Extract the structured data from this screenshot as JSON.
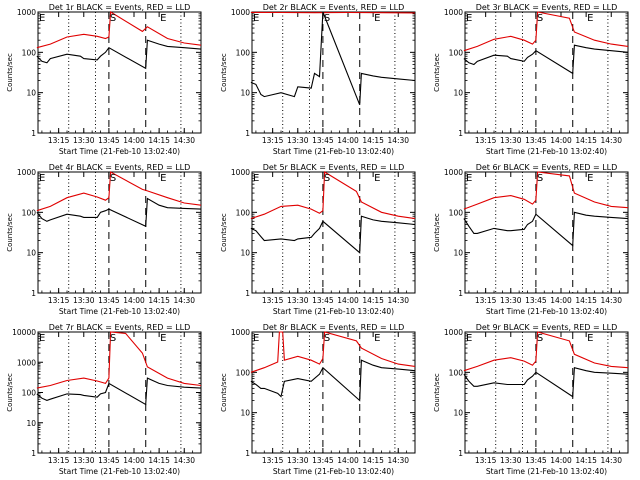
{
  "figure": {
    "background": "#ffffff",
    "colors": {
      "events": "#000000",
      "lld": "#e00000",
      "axis": "#000000"
    }
  },
  "chart_data": [
    {
      "type": "line",
      "scale": "log",
      "title": "Det 1r BLACK = Events, RED = LLD",
      "ylabel": "Counts/sec",
      "xlabel": "Start Time (21-Feb-10 13:02:40)",
      "xlim": [
        "13:02:40",
        "14:40:00"
      ],
      "ylim": [
        1,
        1000
      ],
      "ytick_labels": [
        "1",
        "10",
        "100",
        "1000"
      ],
      "xtick_labels": [
        "13:15",
        "13:30",
        "13:45",
        "14:00",
        "14:15",
        "14:30"
      ],
      "markers": {
        "E_left": "13:02:40",
        "S": "13:45:00",
        "E_right": "14:15:00"
      },
      "dotted": [
        "13:21:00",
        "13:37:00",
        "14:28:00"
      ],
      "dashed": [
        "13:45:00",
        "14:07:00"
      ],
      "series": [
        {
          "name": "LLD",
          "x": [
            "13:02",
            "13:10",
            "13:20",
            "13:30",
            "13:38",
            "13:43",
            "13:45",
            "13:46",
            "14:05",
            "14:08",
            "14:20",
            "14:30",
            "14:40"
          ],
          "y": [
            130,
            160,
            240,
            280,
            250,
            220,
            240,
            1000,
            330,
            430,
            220,
            170,
            150
          ]
        },
        {
          "name": "Events",
          "x": [
            "13:02",
            "13:05",
            "13:08",
            "13:10",
            "13:20",
            "13:28",
            "13:30",
            "13:38",
            "13:40",
            "13:43",
            "13:45",
            "14:07",
            "14:08",
            "14:15",
            "14:20",
            "14:30",
            "14:40"
          ],
          "y": [
            80,
            60,
            55,
            70,
            90,
            80,
            70,
            65,
            80,
            100,
            130,
            40,
            200,
            160,
            140,
            130,
            120
          ]
        }
      ]
    },
    {
      "type": "line",
      "scale": "log",
      "title": "Det 2r BLACK = Events, RED = LLD",
      "ylabel": "Counts/sec",
      "xlabel": "Start Time (21-Feb-10 13:02:40)",
      "xlim": [
        "13:02:40",
        "14:40:00"
      ],
      "ylim": [
        1,
        1000
      ],
      "ytick_labels": [
        "1",
        "10",
        "100",
        "1000"
      ],
      "xtick_labels": [
        "13:15",
        "13:30",
        "13:45",
        "14:00",
        "14:15",
        "14:30"
      ],
      "markers": {
        "E_left": "13:02:40",
        "S": "13:45:00",
        "E_right": "14:15:00"
      },
      "dotted": [
        "13:21:00",
        "13:37:00",
        "14:28:00"
      ],
      "dashed": [
        "13:45:00",
        "14:07:00"
      ],
      "series": [
        {
          "name": "LLD",
          "x": [
            "13:02",
            "13:20",
            "13:40",
            "14:00",
            "14:20",
            "14:40"
          ],
          "y": [
            980,
            970,
            960,
            970,
            960,
            950
          ]
        },
        {
          "name": "Events",
          "x": [
            "13:02",
            "13:05",
            "13:08",
            "13:10",
            "13:20",
            "13:28",
            "13:30",
            "13:38",
            "13:40",
            "13:43",
            "13:45",
            "14:07",
            "14:08",
            "14:15",
            "14:20",
            "14:30",
            "14:40"
          ],
          "y": [
            18,
            16,
            9,
            8,
            10,
            8,
            14,
            13,
            30,
            25,
            1000,
            5,
            30,
            26,
            24,
            22,
            20
          ]
        }
      ]
    },
    {
      "type": "line",
      "scale": "log",
      "title": "Det 3r BLACK = Events, RED = LLD",
      "ylabel": "Counts/sec",
      "xlabel": "Start Time (21-Feb-10 13:02:40)",
      "xlim": [
        "13:02:40",
        "14:40:00"
      ],
      "ylim": [
        1,
        1000
      ],
      "ytick_labels": [
        "1",
        "10",
        "100",
        "1000"
      ],
      "xtick_labels": [
        "13:15",
        "13:30",
        "13:45",
        "14:00",
        "14:15",
        "14:30"
      ],
      "markers": {
        "E_left": "13:02:40",
        "S": "13:45:00",
        "E_right": "14:15:00"
      },
      "dotted": [
        "13:21:00",
        "13:37:00",
        "14:28:00"
      ],
      "dashed": [
        "13:45:00",
        "14:07:00"
      ],
      "series": [
        {
          "name": "LLD",
          "x": [
            "13:02",
            "13:10",
            "13:20",
            "13:30",
            "13:38",
            "13:43",
            "13:45",
            "13:46",
            "14:05",
            "14:08",
            "14:20",
            "14:30",
            "14:40"
          ],
          "y": [
            110,
            140,
            210,
            250,
            200,
            160,
            200,
            1000,
            700,
            320,
            200,
            160,
            140
          ]
        },
        {
          "name": "Events",
          "x": [
            "13:02",
            "13:05",
            "13:08",
            "13:10",
            "13:20",
            "13:28",
            "13:30",
            "13:38",
            "13:40",
            "13:43",
            "13:45",
            "14:07",
            "14:08",
            "14:15",
            "14:20",
            "14:30",
            "14:40"
          ],
          "y": [
            70,
            55,
            50,
            60,
            85,
            80,
            70,
            60,
            75,
            90,
            110,
            30,
            150,
            130,
            120,
            110,
            100
          ]
        }
      ]
    },
    {
      "type": "line",
      "scale": "log",
      "title": "Det 4r BLACK = Events, RED = LLD",
      "ylabel": "Counts/sec",
      "xlabel": "Start Time (21-Feb-10 13:02:40)",
      "xlim": [
        "13:02:40",
        "14:40:00"
      ],
      "ylim": [
        1,
        1000
      ],
      "ytick_labels": [
        "1",
        "10",
        "100",
        "1000"
      ],
      "xtick_labels": [
        "13:15",
        "13:30",
        "13:45",
        "14:00",
        "14:15",
        "14:30"
      ],
      "markers": {
        "E_left": "13:02:40",
        "S": "13:45:00",
        "E_right": "14:15:00"
      },
      "dotted": [
        "13:21:00",
        "13:37:00",
        "14:28:00"
      ],
      "dashed": [
        "13:45:00",
        "14:07:00"
      ],
      "series": [
        {
          "name": "LLD",
          "x": [
            "13:02",
            "13:10",
            "13:20",
            "13:30",
            "13:38",
            "13:43",
            "13:45",
            "13:46",
            "14:05",
            "14:08",
            "14:20",
            "14:30",
            "14:40"
          ],
          "y": [
            110,
            140,
            230,
            300,
            240,
            200,
            230,
            1000,
            370,
            340,
            230,
            170,
            150
          ]
        },
        {
          "name": "Events",
          "x": [
            "13:02",
            "13:05",
            "13:08",
            "13:10",
            "13:20",
            "13:28",
            "13:30",
            "13:38",
            "13:40",
            "13:43",
            "13:45",
            "14:07",
            "14:08",
            "14:15",
            "14:20",
            "14:30",
            "14:40"
          ],
          "y": [
            100,
            70,
            60,
            65,
            90,
            80,
            75,
            75,
            100,
            110,
            120,
            45,
            220,
            150,
            130,
            125,
            120
          ]
        }
      ]
    },
    {
      "type": "line",
      "scale": "log",
      "title": "Det 5r BLACK = Events, RED = LLD",
      "ylabel": "Counts/sec",
      "xlabel": "Start Time (21-Feb-10 13:02:40)",
      "xlim": [
        "13:02:40",
        "14:40:00"
      ],
      "ylim": [
        1,
        1000
      ],
      "ytick_labels": [
        "1",
        "10",
        "100",
        "1000"
      ],
      "xtick_labels": [
        "13:15",
        "13:30",
        "13:45",
        "14:00",
        "14:15",
        "14:30"
      ],
      "markers": {
        "E_left": "13:02:40",
        "S": "13:45:00",
        "E_right": "14:15:00"
      },
      "dotted": [
        "13:21:00",
        "13:37:00",
        "14:28:00"
      ],
      "dashed": [
        "13:45:00",
        "14:07:00"
      ],
      "series": [
        {
          "name": "LLD",
          "x": [
            "13:02",
            "13:10",
            "13:20",
            "13:30",
            "13:38",
            "13:43",
            "13:45",
            "13:46",
            "14:05",
            "14:08",
            "14:20",
            "14:30",
            "14:40"
          ],
          "y": [
            70,
            90,
            140,
            150,
            120,
            95,
            110,
            1000,
            330,
            180,
            100,
            80,
            70
          ]
        },
        {
          "name": "Events",
          "x": [
            "13:02",
            "13:05",
            "13:08",
            "13:10",
            "13:20",
            "13:28",
            "13:30",
            "13:38",
            "13:40",
            "13:43",
            "13:45",
            "14:07",
            "14:08",
            "14:15",
            "14:20",
            "14:30",
            "14:40"
          ],
          "y": [
            40,
            35,
            25,
            20,
            22,
            20,
            22,
            24,
            30,
            40,
            60,
            10,
            80,
            65,
            60,
            55,
            50
          ]
        }
      ]
    },
    {
      "type": "line",
      "scale": "log",
      "title": "Det 6r BLACK = Events, RED = LLD",
      "ylabel": "Counts/sec",
      "xlabel": "Start Time (21-Feb-10 13:02:40)",
      "xlim": [
        "13:02:40",
        "14:40:00"
      ],
      "ylim": [
        1,
        1000
      ],
      "ytick_labels": [
        "1",
        "10",
        "100",
        "1000"
      ],
      "xtick_labels": [
        "13:15",
        "13:30",
        "13:45",
        "14:00",
        "14:15",
        "14:30"
      ],
      "markers": {
        "E_left": "13:02:40",
        "S": "13:45:00",
        "E_right": "14:15:00"
      },
      "dotted": [
        "13:21:00",
        "13:37:00",
        "14:28:00"
      ],
      "dashed": [
        "13:45:00",
        "14:07:00"
      ],
      "series": [
        {
          "name": "LLD",
          "x": [
            "13:02",
            "13:10",
            "13:20",
            "13:30",
            "13:38",
            "13:43",
            "13:45",
            "13:46",
            "14:05",
            "14:08",
            "14:20",
            "14:30",
            "14:40"
          ],
          "y": [
            120,
            160,
            230,
            260,
            210,
            160,
            200,
            1000,
            800,
            300,
            180,
            140,
            130
          ]
        },
        {
          "name": "Events",
          "x": [
            "13:02",
            "13:05",
            "13:08",
            "13:10",
            "13:20",
            "13:28",
            "13:30",
            "13:38",
            "13:40",
            "13:43",
            "13:45",
            "14:07",
            "14:08",
            "14:15",
            "14:20",
            "14:30",
            "14:40"
          ],
          "y": [
            70,
            45,
            30,
            30,
            40,
            35,
            35,
            38,
            50,
            60,
            90,
            15,
            100,
            85,
            80,
            75,
            70
          ]
        }
      ]
    },
    {
      "type": "line",
      "scale": "log",
      "title": "Det 7r BLACK = Events, RED = LLD",
      "ylabel": "Counts/sec",
      "xlabel": "Start Time (21-Feb-10 13:02:40)",
      "xlim": [
        "13:02:40",
        "14:40:00"
      ],
      "ylim": [
        1,
        10000
      ],
      "ytick_labels": [
        "1",
        "10",
        "100",
        "1000",
        "10000"
      ],
      "xtick_labels": [
        "13:15",
        "13:30",
        "13:45",
        "14:00",
        "14:15",
        "14:30"
      ],
      "markers": {
        "E_left": "13:02:40",
        "S": "13:45:00",
        "E_right": "14:15:00"
      },
      "dotted": [
        "13:21:00",
        "13:37:00",
        "14:28:00"
      ],
      "dashed": [
        "13:45:00",
        "14:07:00"
      ],
      "series": [
        {
          "name": "LLD",
          "x": [
            "13:02",
            "13:10",
            "13:20",
            "13:30",
            "13:38",
            "13:43",
            "13:45",
            "13:46",
            "13:55",
            "14:05",
            "14:08",
            "14:20",
            "14:30",
            "14:40"
          ],
          "y": [
            140,
            170,
            250,
            300,
            240,
            200,
            300,
            10000,
            9000,
            2000,
            700,
            300,
            200,
            170
          ]
        },
        {
          "name": "Events",
          "x": [
            "13:02",
            "13:05",
            "13:08",
            "13:10",
            "13:20",
            "13:28",
            "13:30",
            "13:38",
            "13:40",
            "13:43",
            "13:45",
            "14:07",
            "14:08",
            "14:15",
            "14:20",
            "14:30",
            "14:40"
          ],
          "y": [
            90,
            65,
            55,
            60,
            90,
            85,
            80,
            70,
            90,
            100,
            200,
            40,
            300,
            200,
            170,
            150,
            140
          ]
        }
      ]
    },
    {
      "type": "line",
      "scale": "log",
      "title": "Det 8r BLACK = Events, RED = LLD",
      "ylabel": "Counts/sec",
      "xlabel": "Start Time (21-Feb-10 13:02:40)",
      "xlim": [
        "13:02:40",
        "14:40:00"
      ],
      "ylim": [
        1,
        1000
      ],
      "ytick_labels": [
        "1",
        "10",
        "100",
        "1000"
      ],
      "xtick_labels": [
        "13:15",
        "13:30",
        "13:45",
        "14:00",
        "14:15",
        "14:30"
      ],
      "markers": {
        "E_left": "13:02:40",
        "S": "13:45:00",
        "E_right": "14:15:00"
      },
      "dotted": [
        "13:21:00",
        "13:37:00",
        "14:28:00"
      ],
      "dashed": [
        "13:45:00",
        "14:07:00"
      ],
      "series": [
        {
          "name": "LLD",
          "x": [
            "13:02",
            "13:10",
            "13:18",
            "13:19",
            "13:20",
            "13:21",
            "13:22",
            "13:30",
            "13:38",
            "13:43",
            "13:45",
            "13:46",
            "14:05",
            "14:08",
            "14:20",
            "14:30",
            "14:40"
          ],
          "y": [
            100,
            130,
            180,
            1000,
            1000,
            1000,
            200,
            250,
            200,
            160,
            220,
            1000,
            600,
            400,
            220,
            160,
            140
          ]
        },
        {
          "name": "Events",
          "x": [
            "13:02",
            "13:05",
            "13:08",
            "13:10",
            "13:18",
            "13:20",
            "13:22",
            "13:30",
            "13:38",
            "13:43",
            "13:45",
            "14:07",
            "14:08",
            "14:15",
            "14:20",
            "14:30",
            "14:40"
          ],
          "y": [
            60,
            50,
            40,
            40,
            30,
            25,
            60,
            70,
            60,
            90,
            130,
            20,
            200,
            150,
            130,
            120,
            110
          ]
        }
      ]
    },
    {
      "type": "line",
      "scale": "log",
      "title": "Det 9r BLACK = Events, RED = LLD",
      "ylabel": "Counts/sec",
      "xlabel": "Start Time (21-Feb-10 13:02:40)",
      "xlim": [
        "13:02:40",
        "14:40:00"
      ],
      "ylim": [
        1,
        1000
      ],
      "ytick_labels": [
        "1",
        "10",
        "100",
        "1000"
      ],
      "xtick_labels": [
        "13:15",
        "13:30",
        "13:45",
        "14:00",
        "14:15",
        "14:30"
      ],
      "markers": {
        "E_left": "13:02:40",
        "S": "13:45:00",
        "E_right": "14:15:00"
      },
      "dotted": [
        "13:21:00",
        "13:37:00",
        "14:28:00"
      ],
      "dashed": [
        "13:45:00",
        "14:07:00"
      ],
      "series": [
        {
          "name": "LLD",
          "x": [
            "13:02",
            "13:10",
            "13:20",
            "13:30",
            "13:38",
            "13:43",
            "13:45",
            "13:46",
            "14:05",
            "14:08",
            "14:20",
            "14:30",
            "14:40"
          ],
          "y": [
            110,
            140,
            200,
            230,
            190,
            150,
            190,
            1000,
            600,
            280,
            170,
            140,
            130
          ]
        },
        {
          "name": "Events",
          "x": [
            "13:02",
            "13:05",
            "13:08",
            "13:10",
            "13:20",
            "13:28",
            "13:30",
            "13:38",
            "13:40",
            "13:43",
            "13:45",
            "14:07",
            "14:08",
            "14:15",
            "14:20",
            "14:30",
            "14:40"
          ],
          "y": [
            90,
            60,
            45,
            45,
            55,
            50,
            50,
            50,
            65,
            80,
            100,
            25,
            130,
            110,
            100,
            95,
            90
          ]
        }
      ]
    }
  ]
}
